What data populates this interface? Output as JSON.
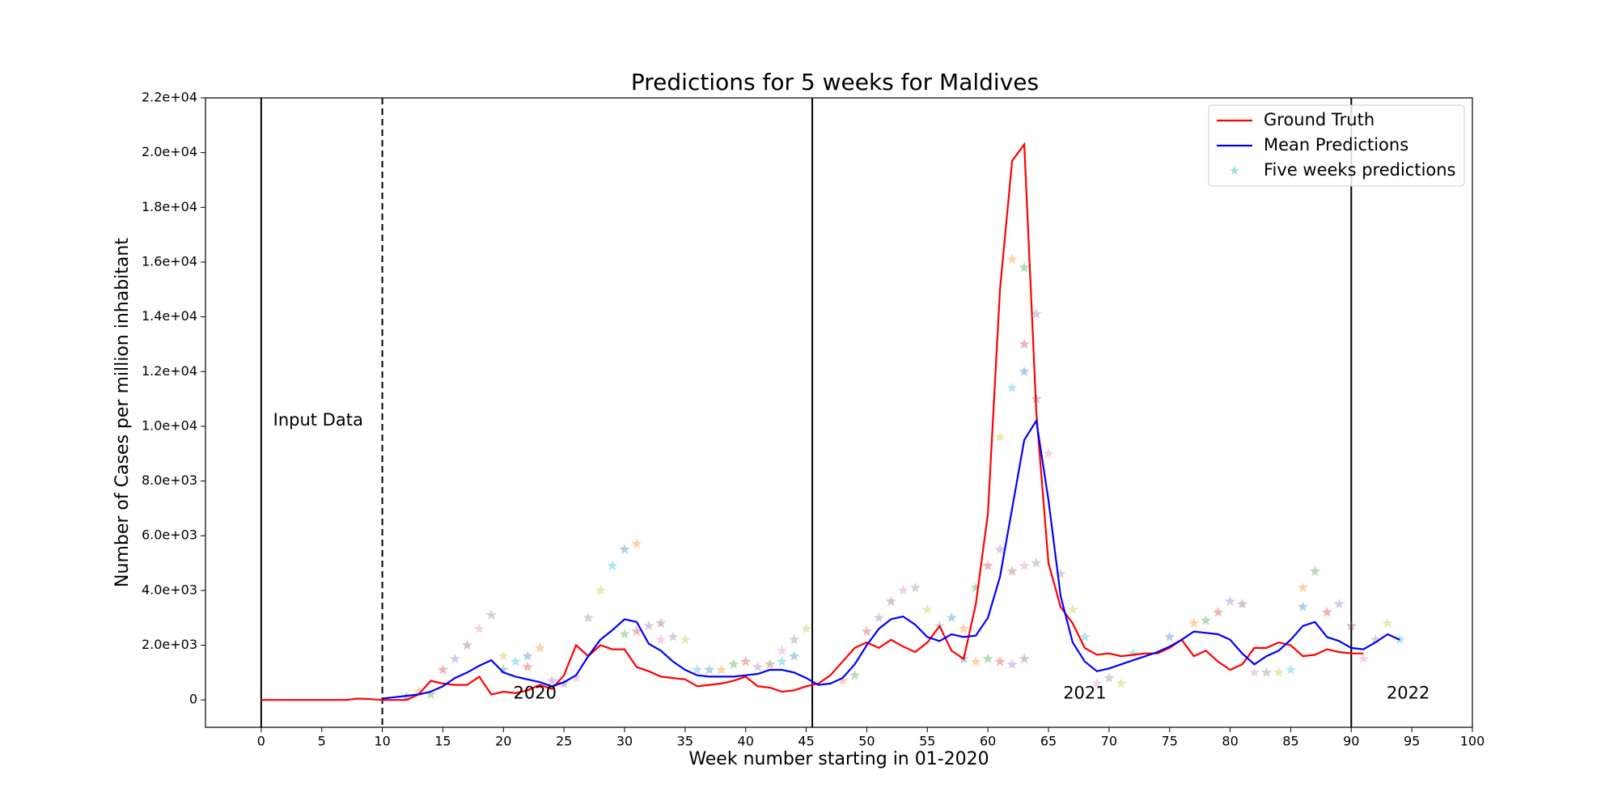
{
  "chart_data": {
    "type": "line",
    "title": "Predictions for 5 weeks for Maldives",
    "xlabel": "Week number starting in 01-2020",
    "ylabel": "Number of Cases per million inhabitant",
    "xlim": [
      -4.6,
      100
    ],
    "ylim": [
      -1000,
      22000
    ],
    "xticks": [
      0,
      5,
      10,
      15,
      20,
      25,
      30,
      35,
      40,
      45,
      50,
      55,
      60,
      65,
      70,
      75,
      80,
      85,
      90,
      95,
      100
    ],
    "yticks": [
      0,
      {
        "value": 2000,
        "label": "2.0e+03"
      },
      {
        "value": 4000,
        "label": "4.0e+03"
      },
      {
        "value": 6000,
        "label": "6.0e+03"
      },
      {
        "value": 8000,
        "label": "8.0e+03"
      },
      {
        "value": 10000,
        "label": "1.0e+04"
      },
      {
        "value": 12000,
        "label": "1.2e+04"
      },
      {
        "value": 14000,
        "label": "1.4e+04"
      },
      {
        "value": 16000,
        "label": "1.6e+04"
      },
      {
        "value": 18000,
        "label": "1.8e+04"
      },
      {
        "value": 20000,
        "label": "2.0e+04"
      },
      {
        "value": 22000,
        "label": "2.2e+04"
      }
    ],
    "legend": "upper right",
    "x": [
      0,
      1,
      2,
      3,
      4,
      5,
      6,
      7,
      8,
      9,
      10,
      11,
      12,
      13,
      14,
      15,
      16,
      17,
      18,
      19,
      20,
      21,
      22,
      23,
      24,
      25,
      26,
      27,
      28,
      29,
      30,
      31,
      32,
      33,
      34,
      35,
      36,
      37,
      38,
      39,
      40,
      41,
      42,
      43,
      44,
      45,
      46,
      47,
      48,
      49,
      50,
      51,
      52,
      53,
      54,
      55,
      56,
      57,
      58,
      59,
      60,
      61,
      62,
      63,
      64,
      65,
      66,
      67,
      68,
      69,
      70,
      71,
      72,
      73,
      74,
      75,
      76,
      77,
      78,
      79,
      80,
      81,
      82,
      83,
      84,
      85,
      86,
      87,
      88,
      89,
      90,
      91,
      92,
      93,
      94
    ],
    "series": [
      {
        "name": "Ground Truth",
        "color": "#ff0000",
        "values": [
          0,
          0,
          0,
          0,
          0,
          0,
          0,
          0,
          50,
          30,
          0,
          0,
          0,
          200,
          700,
          600,
          550,
          550,
          850,
          200,
          300,
          250,
          350,
          550,
          400,
          900,
          2000,
          1600,
          2000,
          1850,
          1850,
          1200,
          1050,
          850,
          800,
          750,
          500,
          550,
          600,
          700,
          850,
          500,
          450,
          300,
          350,
          500,
          600,
          900,
          1400,
          1900,
          2100,
          1900,
          2200,
          1950,
          1750,
          2100,
          2700,
          1800,
          1500,
          3500,
          6800,
          15000,
          19700,
          20300,
          10500,
          5000,
          3400,
          2800,
          1900,
          1650,
          1700,
          1600,
          1650,
          1700,
          1700,
          1900,
          2200,
          1600,
          1800,
          1400,
          1100,
          1300,
          1900,
          1900,
          2100,
          2000,
          1600,
          1650,
          1850,
          1750,
          1700,
          1700,
          null,
          null,
          null
        ]
      },
      {
        "name": "Mean Predictions",
        "color": "#0000ff",
        "values": [
          null,
          null,
          null,
          null,
          null,
          null,
          null,
          null,
          null,
          null,
          50,
          100,
          150,
          200,
          300,
          500,
          800,
          1000,
          1250,
          1450,
          1000,
          850,
          750,
          650,
          500,
          650,
          900,
          1600,
          2200,
          2550,
          2950,
          2850,
          2050,
          1800,
          1400,
          1100,
          900,
          850,
          850,
          850,
          900,
          950,
          1100,
          1100,
          1000,
          800,
          550,
          600,
          800,
          1300,
          2000,
          2600,
          2950,
          3050,
          2750,
          2300,
          2150,
          2400,
          2300,
          2350,
          3000,
          4500,
          7000,
          9500,
          10200,
          7300,
          3800,
          2100,
          1400,
          1050,
          1150,
          1300,
          1450,
          1600,
          1750,
          1950,
          2200,
          2500,
          2450,
          2400,
          2200,
          1700,
          1300,
          1600,
          1800,
          2200,
          2700,
          2850,
          2300,
          2150,
          1900,
          1850,
          2100,
          2400,
          2200
        ]
      },
      {
        "name": "Five weeks predictions",
        "type": "scatter",
        "color": "#17becf",
        "color_cycle": [
          "#1f77b4",
          "#ff7f0e",
          "#2ca02c",
          "#d62728",
          "#9467bd",
          "#8c564b",
          "#e377c2",
          "#7f7f7f",
          "#bcbd22",
          "#17becf"
        ],
        "x": [
          12,
          13,
          14,
          15,
          16,
          17,
          18,
          19,
          20,
          21,
          22,
          23,
          20,
          22,
          24,
          25,
          26,
          27,
          28,
          29,
          30,
          31,
          30,
          31,
          32,
          33,
          33,
          34,
          35,
          36,
          37,
          38,
          39,
          40,
          41,
          42,
          43,
          44,
          45,
          43,
          44,
          48,
          49,
          50,
          51,
          52,
          53,
          54,
          55,
          56,
          57,
          58,
          59,
          60,
          61,
          62,
          63,
          64,
          61,
          62,
          63,
          62,
          63,
          63,
          64,
          64,
          65,
          66,
          67,
          68,
          58,
          59,
          60,
          61,
          62,
          63,
          69,
          70,
          71,
          72,
          75,
          77,
          78,
          79,
          80,
          81,
          82,
          83,
          84,
          85,
          86,
          86,
          87,
          88,
          89,
          90,
          91,
          92,
          93,
          94
        ],
        "values": [
          100,
          300,
          200,
          1100,
          1500,
          2000,
          2600,
          3100,
          1600,
          1400,
          1600,
          1900,
          1100,
          1200,
          700,
          600,
          800,
          3000,
          4000,
          4900,
          5500,
          5700,
          2400,
          2500,
          2700,
          2800,
          2200,
          2300,
          2200,
          1100,
          1100,
          1100,
          1300,
          1400,
          1200,
          1300,
          1800,
          2200,
          2600,
          1400,
          1600,
          700,
          900,
          2500,
          3000,
          3600,
          4000,
          4100,
          3300,
          2700,
          3000,
          2600,
          4100,
          4900,
          5500,
          4700,
          4900,
          5000,
          9600,
          11400,
          12000,
          16100,
          15800,
          13000,
          14100,
          11000,
          9000,
          4600,
          3300,
          2300,
          1500,
          1400,
          1500,
          1400,
          1300,
          1500,
          600,
          800,
          600,
          1700,
          2300,
          2800,
          2900,
          3200,
          3600,
          3500,
          1000,
          1000,
          1000,
          1100,
          3400,
          4100,
          4700,
          3200,
          3500,
          2700,
          1500,
          2200,
          2800,
          2200
        ]
      }
    ],
    "vlines": [
      {
        "x": 0,
        "style": "solid"
      },
      {
        "x": 10,
        "style": "dashed"
      },
      {
        "x": 45.5,
        "style": "solid"
      },
      {
        "x": 90,
        "style": "solid"
      }
    ],
    "annotations": [
      {
        "text": "Input Data",
        "x": 4.7,
        "y": 10200
      },
      {
        "text": "2020",
        "x": 22.6,
        "y": 230
      },
      {
        "text": "2021",
        "x": 68,
        "y": 230
      },
      {
        "text": "2022",
        "x": 94.7,
        "y": 230
      }
    ]
  }
}
